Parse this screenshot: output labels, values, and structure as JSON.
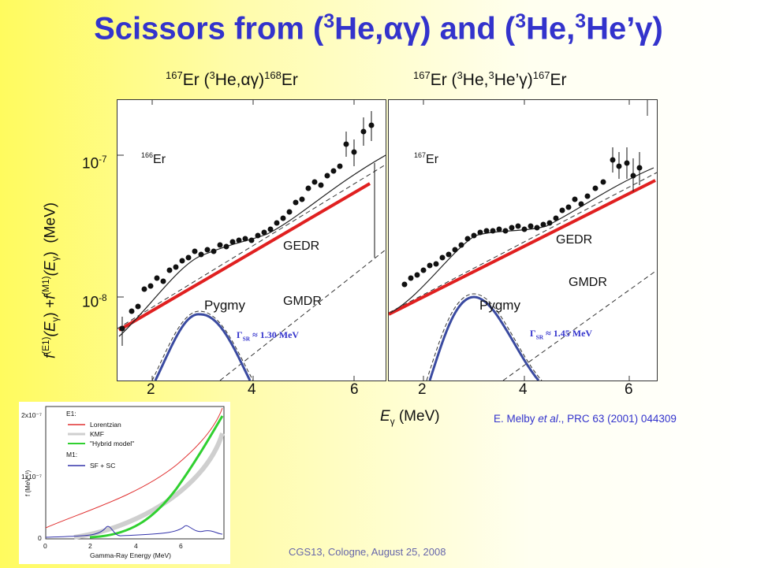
{
  "title": {
    "part1": "Scissors from (",
    "sup1": "3",
    "part2": "He,",
    "alpha": "α",
    "part3": "γ) and (",
    "sup2": "3",
    "part4": "He,",
    "sup3": "3",
    "part5": "He’γ)"
  },
  "left_panel": {
    "title_sup1": "167",
    "title_a": "Er (",
    "title_sup2": "3",
    "title_b": "He,",
    "title_c": "αγ)",
    "title_sup3": "168",
    "title_d": "Er",
    "isotope_sup": "166",
    "isotope": "Er",
    "gedr": "GEDR",
    "gmdr": "GMDR",
    "pygmy": "Pygmy",
    "gamma_sr": "Γ",
    "gamma_sr_sub": "SR",
    "gamma_sr_value": "≈ 1.30 MeV"
  },
  "right_panel": {
    "title_sup1": "167",
    "title_a": "Er (",
    "title_sup2": "3",
    "title_b": "He,",
    "title_sup3": "3",
    "title_c": "He’γ)",
    "title_sup4": "167",
    "title_d": "Er",
    "isotope_sup": "167",
    "isotope": "Er",
    "gedr": "GEDR",
    "gmdr": "GMDR",
    "pygmy": "Pygmy",
    "gamma_sr": "Γ",
    "gamma_sr_sub": "SR",
    "gamma_sr_value": "≈ 1.45 MeV"
  },
  "y_axis": {
    "f": "f",
    "sup_e1": "(E1)",
    "e": "(E",
    "sub_g": "γ",
    "plus": ") +",
    "f2": "f",
    "sup_m1": "(M1)",
    "e2": "(E",
    "sub_g2": "γ",
    "close": ")",
    "unit": "(MeV)",
    "tick_upper": "10",
    "tick_upper_exp": "-7",
    "tick_lower": "10",
    "tick_lower_exp": "-8"
  },
  "x_axis": {
    "label_e": "E",
    "label_sub": "γ",
    "label_unit": "(MeV)",
    "left_ticks": [
      "2",
      "4",
      "6"
    ],
    "right_ticks": [
      "2",
      "4",
      "6"
    ]
  },
  "citation": {
    "a": "E. Melby ",
    "b": "et al",
    "c": "., PRC 63 (2001) 044309"
  },
  "footer": "CGS13, Cologne, August 25, 2008",
  "inset": {
    "ylabel": "f (MeV⁻³)",
    "xlabel": "Gamma-Ray Energy (MeV)",
    "ytick_2": "2x10⁻⁷",
    "ytick_1": "1x10⁻⁷",
    "ytick_0": "0",
    "xticks": [
      "0",
      "2",
      "4",
      "6"
    ],
    "legend_e1": "E1:",
    "legend_lorentzian": "Lorentzian",
    "legend_kmf": "KMF",
    "legend_hybrid": "\"Hybrid model\"",
    "legend_m1": "M1:",
    "legend_sfsc": "SF + SC"
  },
  "colors": {
    "title": "#3333cc",
    "fit_line": "#e02020",
    "pygmy_curve": "#3a4aa0",
    "lorentzian": "#e03030",
    "kmf": "#c8c8c8",
    "hybrid": "#30d030",
    "sf_sc": "#3333aa"
  }
}
